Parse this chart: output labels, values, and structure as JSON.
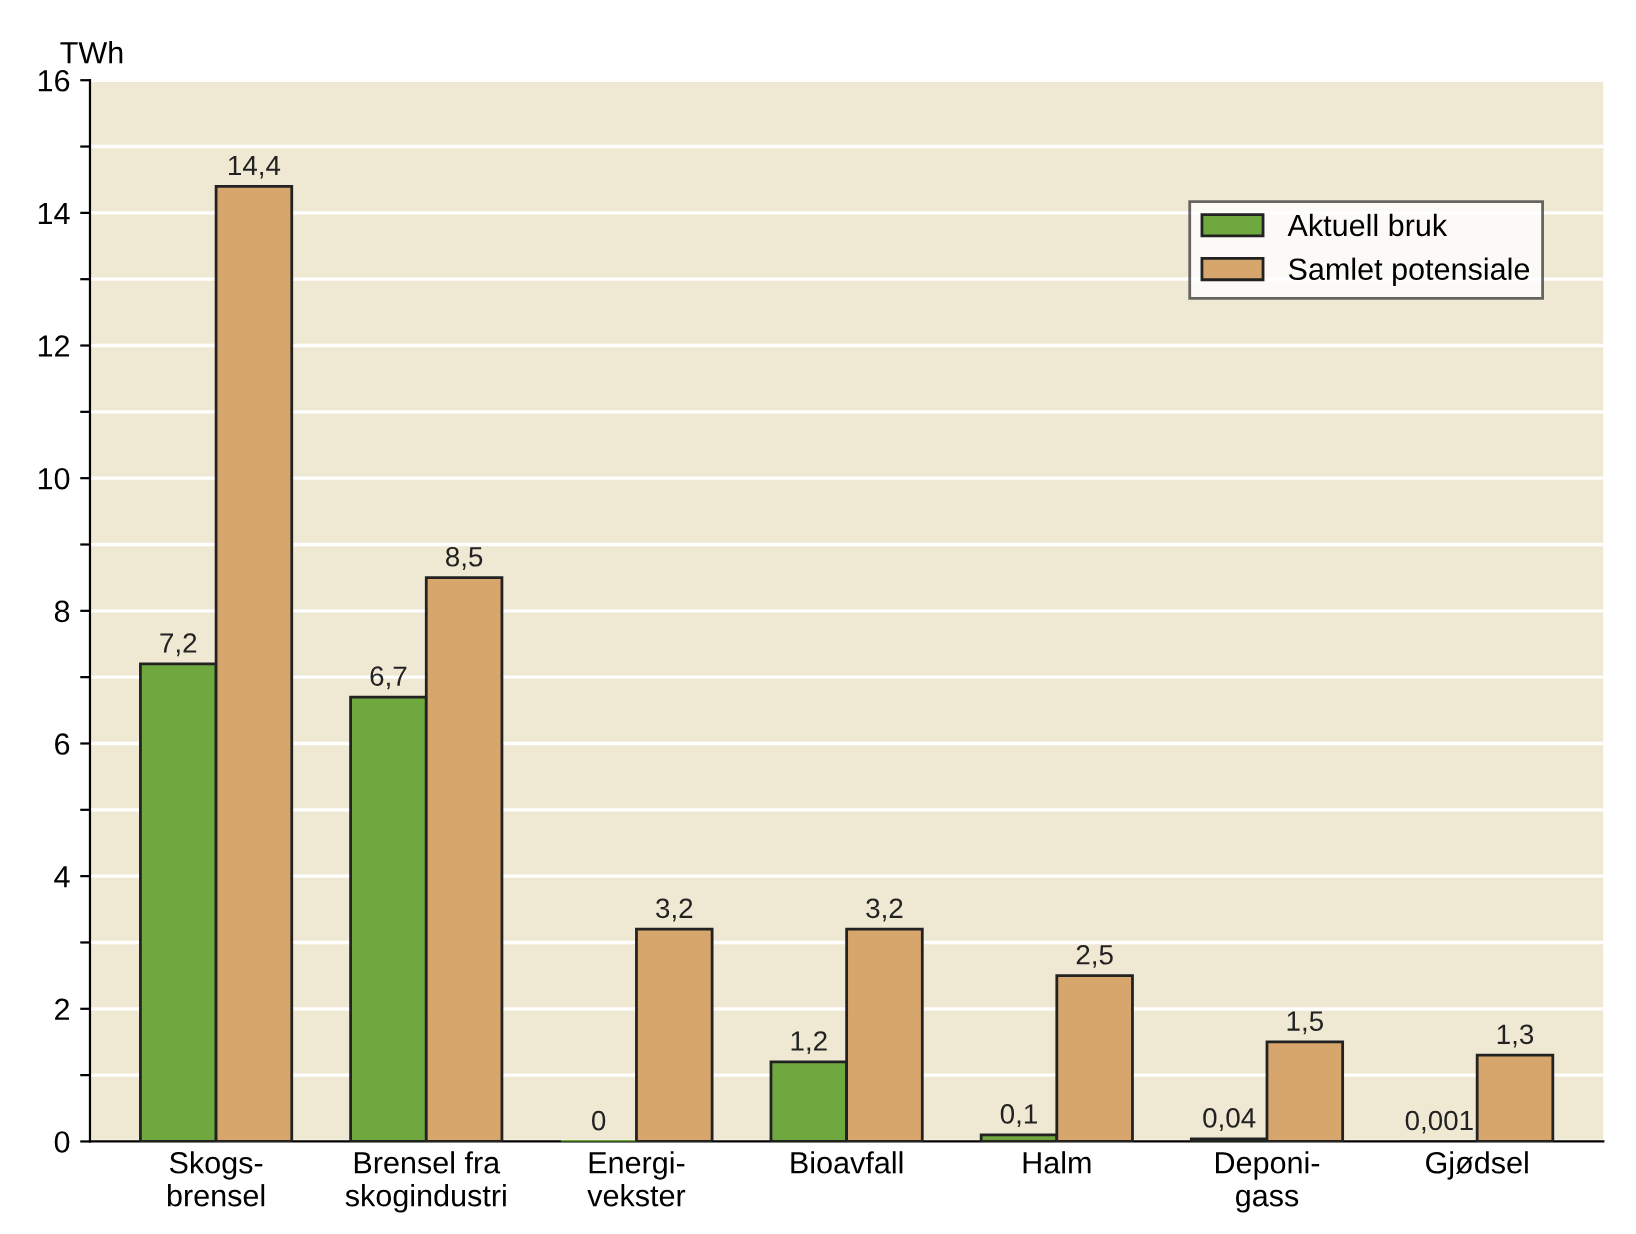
{
  "chart_data": {
    "type": "bar",
    "ylabel": "TWh",
    "categories": [
      "Skogs-\nbrensel",
      "Brensel fra\nskogindustri",
      "Energi-\nvekster",
      "Bioavfall",
      "Halm",
      "Deponi-\ngass",
      "Gjødsel"
    ],
    "series": [
      {
        "name": "Aktuell bruk",
        "color": "#6fa83e",
        "values": [
          7.2,
          6.7,
          0,
          1.2,
          0.1,
          0.04,
          0.001
        ],
        "value_labels": [
          "7,2",
          "6,7",
          "0",
          "1,2",
          "0,1",
          "0,04",
          "0,001"
        ]
      },
      {
        "name": "Samlet potensiale",
        "color": "#d6a66c",
        "values": [
          14.4,
          8.5,
          3.2,
          3.2,
          2.5,
          1.5,
          1.3
        ],
        "value_labels": [
          "14,4",
          "8,5",
          "3,2",
          "3,2",
          "2,5",
          "1,5",
          "1,3"
        ]
      }
    ],
    "ylim": [
      0,
      16
    ],
    "yticks": [
      0,
      {
        "value": 1,
        "label": null
      },
      2,
      {
        "value": 3,
        "label": null
      },
      4,
      {
        "value": 5,
        "label": null
      },
      6,
      {
        "value": 7,
        "label": null
      },
      8,
      {
        "value": 9,
        "label": null
      },
      10,
      {
        "value": 11,
        "label": null
      },
      12,
      {
        "value": 13,
        "label": null
      },
      14,
      {
        "value": 15,
        "label": null
      },
      16
    ],
    "grid": "y",
    "legend": "top right"
  }
}
